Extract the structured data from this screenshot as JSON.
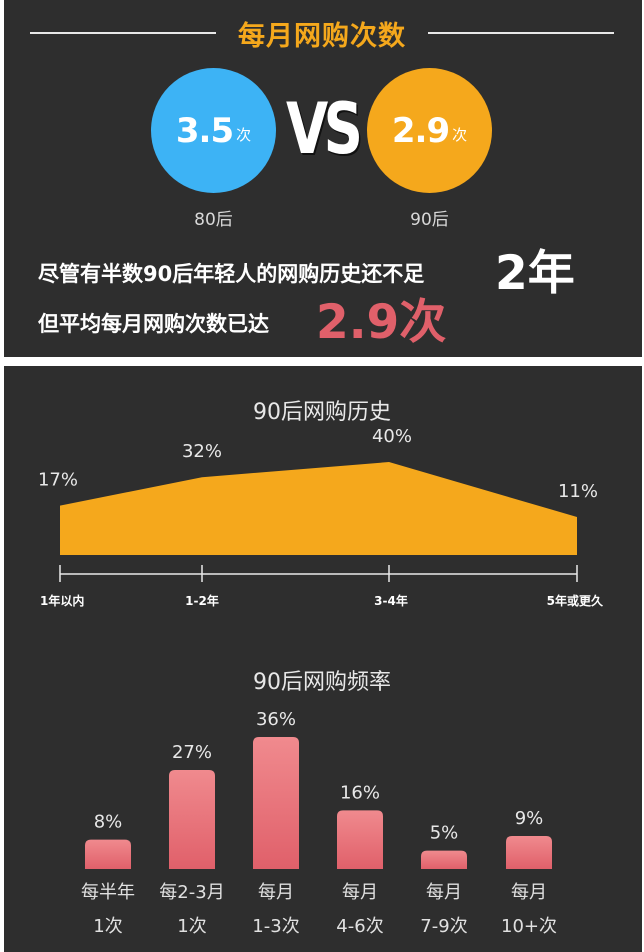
{
  "header": {
    "title": "每月网购次数"
  },
  "comparison": {
    "left": {
      "value": "3.5",
      "unit": "次",
      "label": "80后",
      "color": "#3db3f5"
    },
    "vs": "VS",
    "right": {
      "value": "2.9",
      "unit": "次",
      "label": "90后",
      "color": "#f5a81c"
    }
  },
  "statement": {
    "line1": "尽管有半数90后年轻人的网购历史还不足",
    "line1_highlight": "2年",
    "line2": "但平均每月网购次数已达",
    "line2_highlight": "2.9次",
    "highlight_color": "#e0606a"
  },
  "chart_data": [
    {
      "type": "area",
      "title": "90后网购历史",
      "categories": [
        "1年以内",
        "1-2年",
        "3-4年",
        "5年或更久"
      ],
      "values": [
        17,
        32,
        40,
        11
      ],
      "value_labels": [
        "17%",
        "32%",
        "40%",
        "11%"
      ],
      "color": "#f5a81c",
      "ylim": [
        0,
        40
      ]
    },
    {
      "type": "bar",
      "title": "90后网购频率",
      "categories": [
        [
          "每半年",
          "1次"
        ],
        [
          "每2-3月",
          "1次"
        ],
        [
          "每月",
          "1-3次"
        ],
        [
          "每月",
          "4-6次"
        ],
        [
          "每月",
          "7-9次"
        ],
        [
          "每月",
          "10+次"
        ]
      ],
      "values": [
        8,
        27,
        36,
        16,
        5,
        9
      ],
      "value_labels": [
        "8%",
        "27%",
        "36%",
        "16%",
        "5%",
        "9%"
      ],
      "color": "#e0606a",
      "ylim": [
        0,
        36
      ]
    }
  ]
}
